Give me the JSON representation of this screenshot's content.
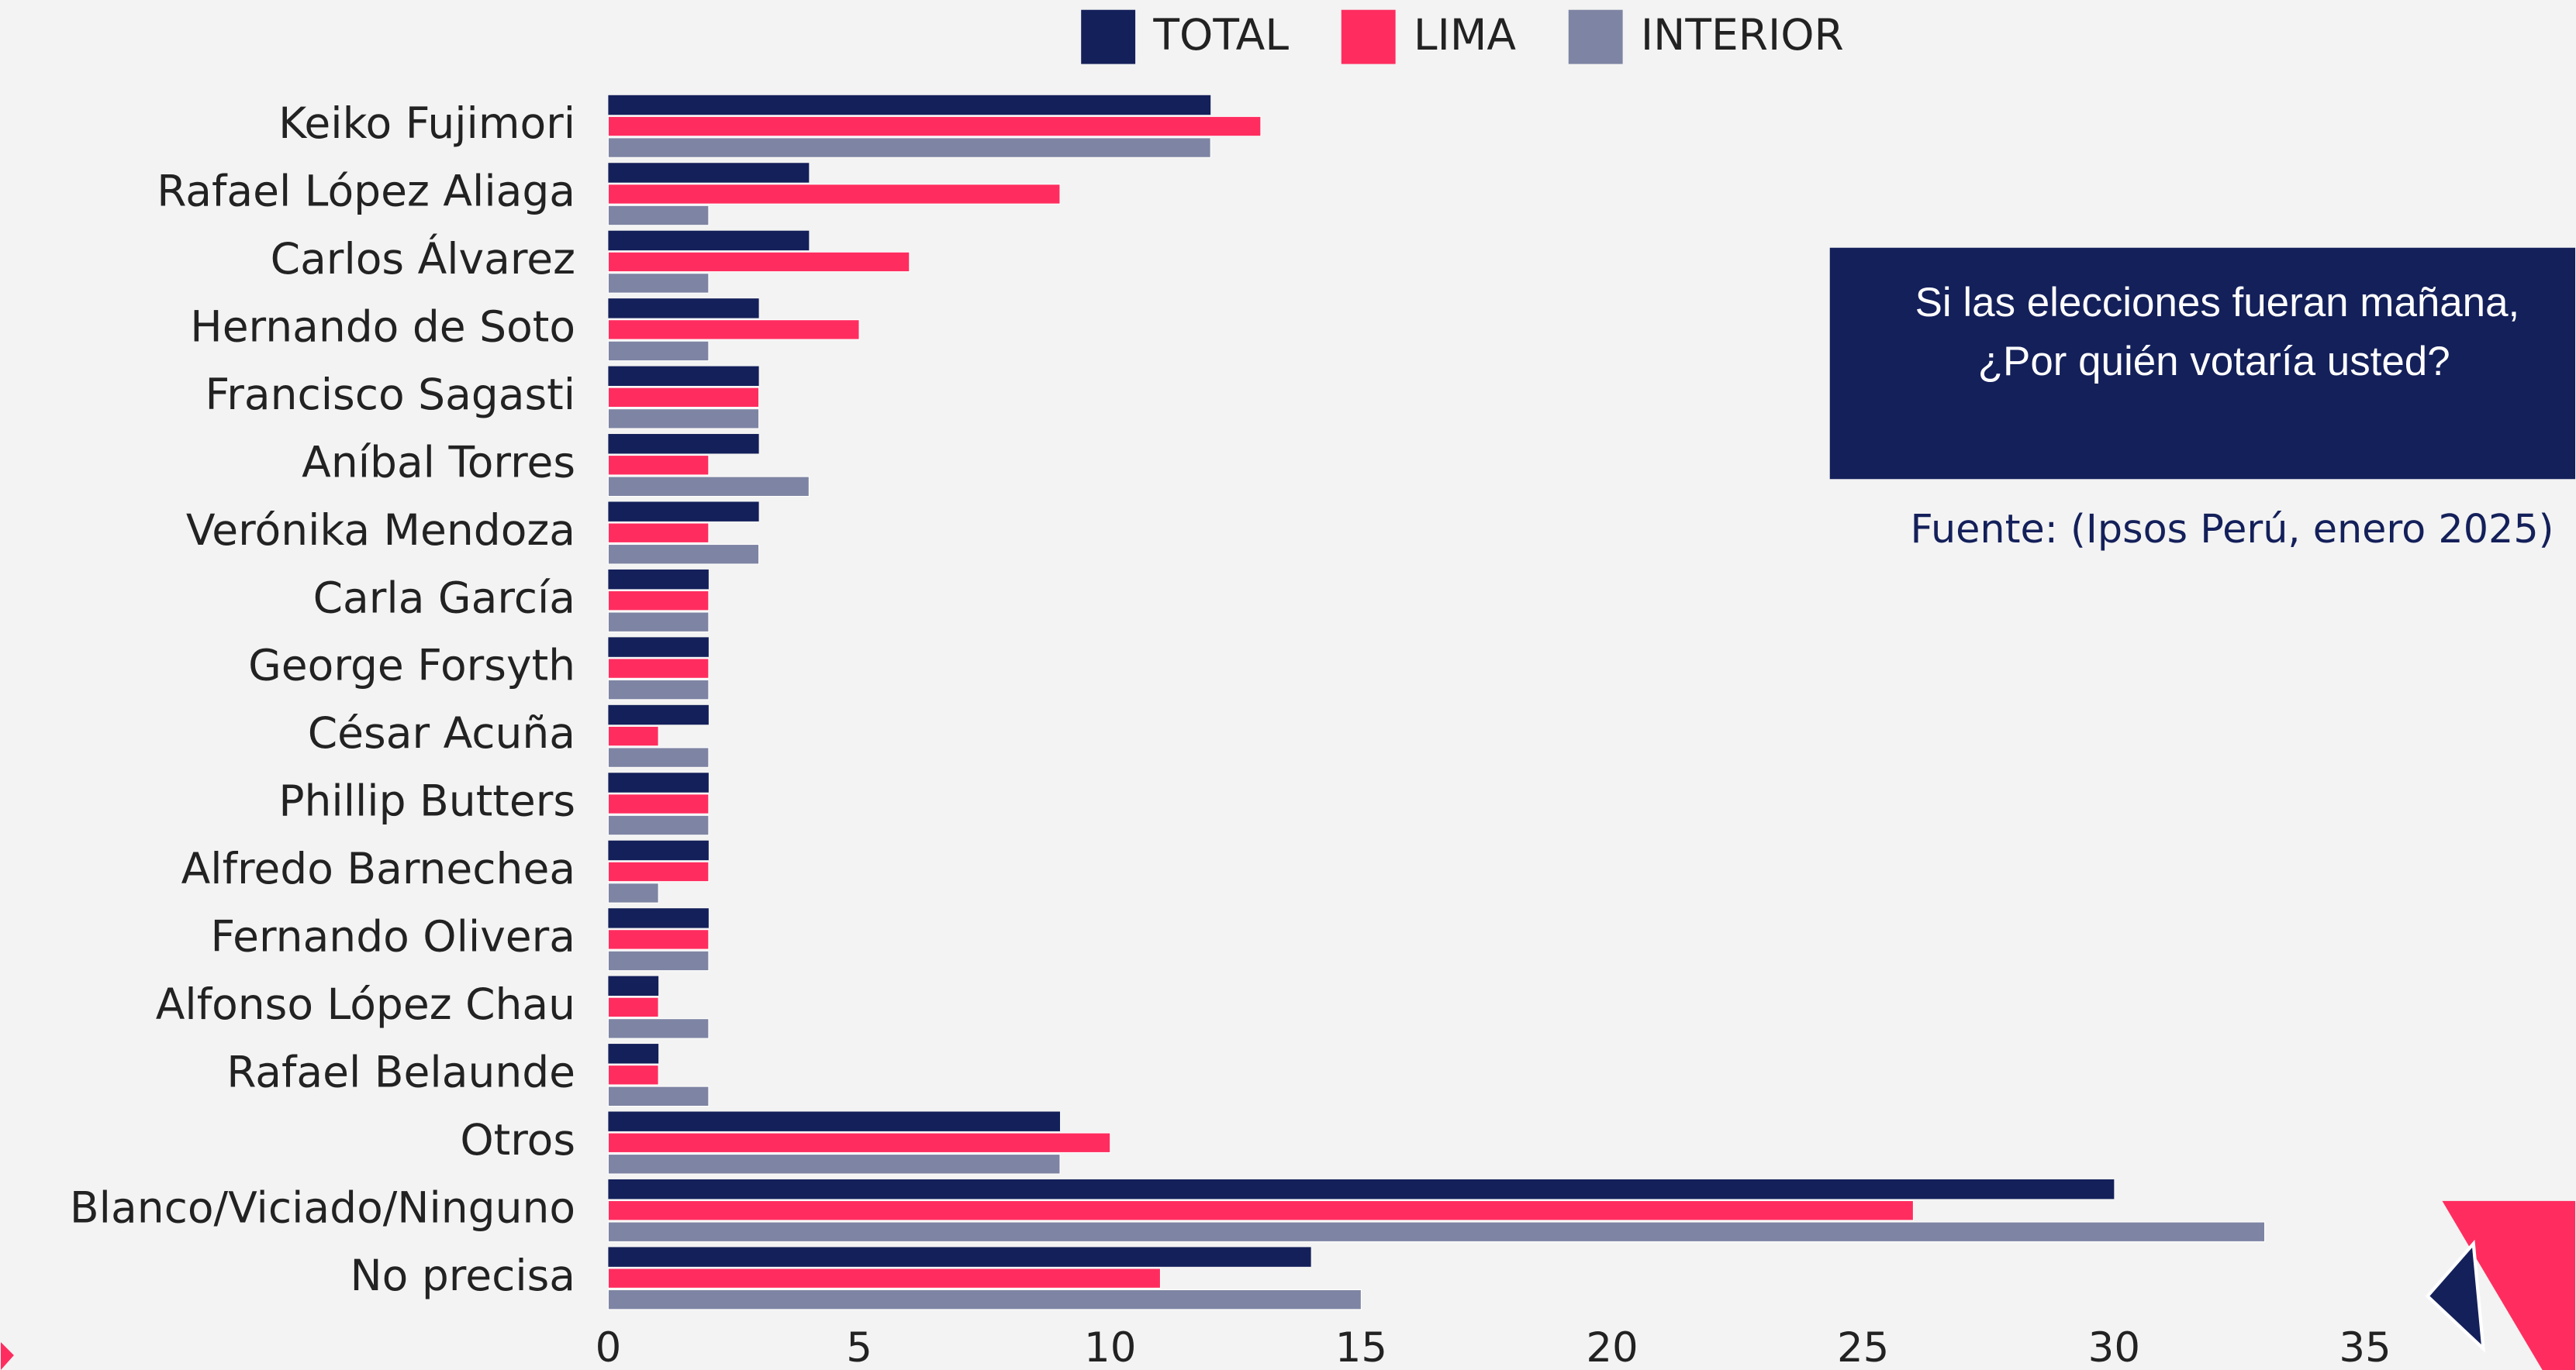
{
  "chart_data": {
    "type": "barh",
    "categories": [
      "Keiko Fujimori",
      "Rafael López Aliaga",
      "Carlos Álvarez",
      "Hernando de Soto",
      "Francisco Sagasti",
      "Aníbal Torres",
      "Verónika Mendoza",
      "Carla García",
      "George Forsyth",
      "César Acuña",
      "Phillip Butters",
      "Alfredo Barnechea",
      "Fernando Olivera",
      "Alfonso López Chau",
      "Rafael Belaunde",
      "Otros",
      "Blanco/Viciado/Ninguno",
      "No precisa"
    ],
    "series": [
      {
        "name": "TOTAL",
        "color": "#14205a",
        "values": [
          12,
          4,
          4,
          3,
          3,
          3,
          3,
          2,
          2,
          2,
          2,
          2,
          2,
          1,
          1,
          9,
          30,
          14
        ]
      },
      {
        "name": "LIMA",
        "color": "#ff2d5f",
        "values": [
          13,
          9,
          6,
          5,
          3,
          2,
          2,
          2,
          2,
          1,
          2,
          2,
          2,
          1,
          1,
          10,
          26,
          11
        ]
      },
      {
        "name": "INTERIOR",
        "color": "#7e84a3",
        "values": [
          12,
          2,
          2,
          2,
          3,
          4,
          3,
          2,
          2,
          2,
          2,
          1,
          2,
          2,
          2,
          9,
          33,
          15
        ]
      }
    ],
    "xlim": [
      0,
      35
    ],
    "xticks": [
      0,
      5,
      10,
      15,
      20,
      25,
      30,
      35
    ],
    "legend": "top",
    "question": [
      "Si las elecciones fueran mañana,",
      "¿Por quién votaría usted?"
    ],
    "source": "Fuente: (Ipsos Perú, enero 2025)"
  }
}
